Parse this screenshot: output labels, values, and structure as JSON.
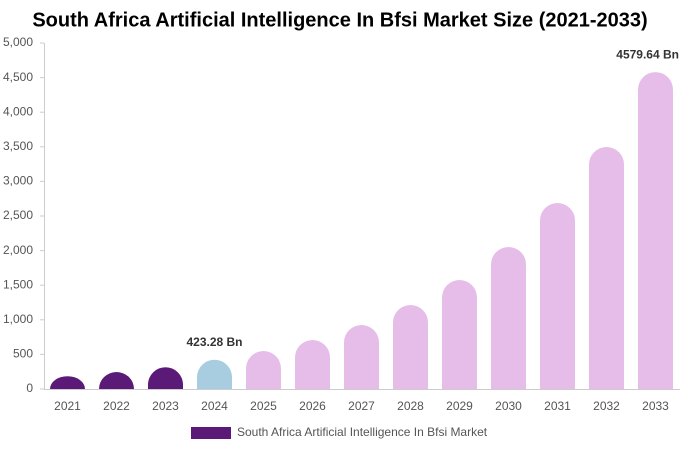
{
  "chart_data": {
    "type": "bar",
    "title": "South Africa Artificial Intelligence In Bfsi Market Size (2021-2033)",
    "categories": [
      "2021",
      "2022",
      "2023",
      "2024",
      "2025",
      "2026",
      "2027",
      "2028",
      "2029",
      "2030",
      "2031",
      "2032",
      "2033"
    ],
    "series": [
      {
        "name": "South Africa Artificial Intelligence In Bfsi Market",
        "color": "#5b1a78",
        "colors": [
          "#5b1a78",
          "#5b1a78",
          "#5b1a78",
          "#a8cde1",
          "#e6bde9",
          "#e6bde9",
          "#e6bde9",
          "#e6bde9",
          "#e6bde9",
          "#e6bde9",
          "#e6bde9",
          "#e6bde9",
          "#e6bde9"
        ],
        "values": [
          185,
          245,
          315,
          423.28,
          549,
          708,
          925,
          1214,
          1575,
          2052,
          2688,
          3497,
          4579.64
        ],
        "value_labels": [
          null,
          null,
          null,
          "423.28 Bn",
          null,
          null,
          null,
          null,
          null,
          null,
          null,
          null,
          "4579.64 Bn"
        ]
      }
    ],
    "ylim": [
      0,
      5000
    ],
    "yticks": [
      0,
      500,
      {
        "value": 1000,
        "label": "1,000"
      },
      {
        "value": 1500,
        "label": "1,500"
      },
      {
        "value": 2000,
        "label": "2,000"
      },
      {
        "value": 2500,
        "label": "2,500"
      },
      {
        "value": 3000,
        "label": "3,000"
      },
      {
        "value": 3500,
        "label": "3,500"
      },
      {
        "value": 4000,
        "label": "4,000"
      },
      {
        "value": 4500,
        "label": "4,500"
      },
      {
        "value": 5000,
        "label": "5,000"
      }
    ]
  }
}
